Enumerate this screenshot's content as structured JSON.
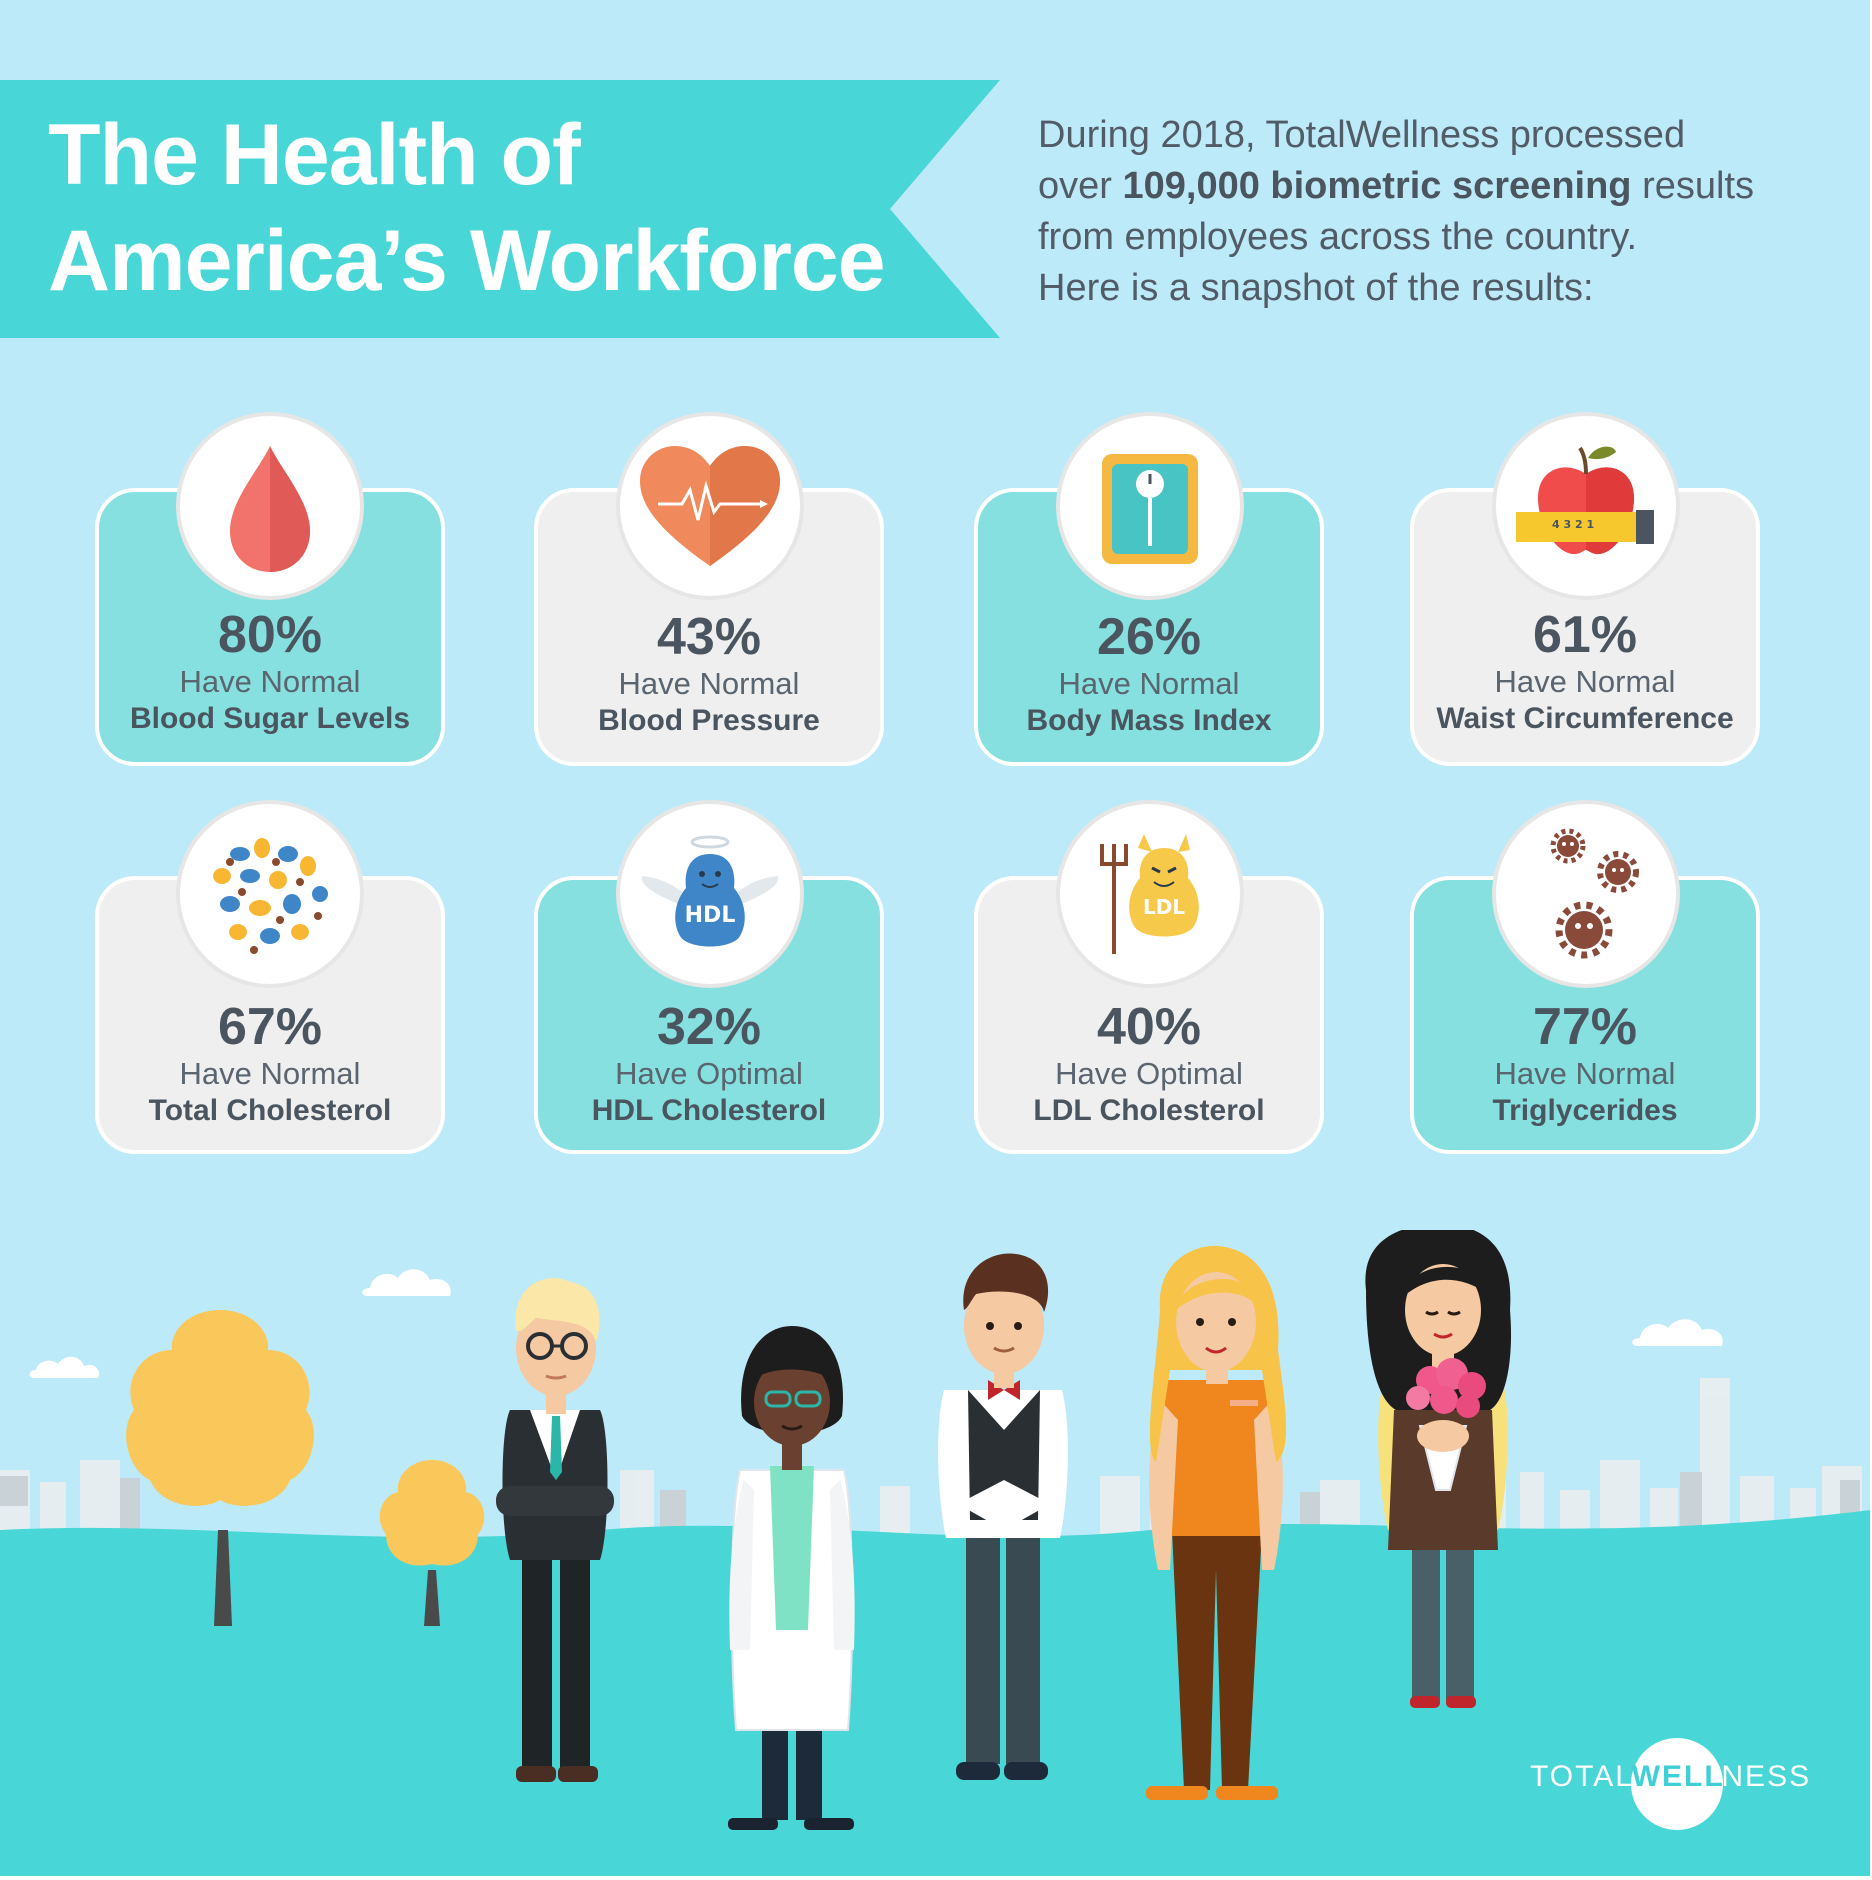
{
  "header": {
    "title_line1": "The Health of",
    "title_line2": "America’s Workforce"
  },
  "intro": {
    "line1": "During 2018, TotalWellness processed",
    "line2_pre": "over ",
    "line2_bold": "109,000 biometric screening",
    "line2_post": " results",
    "line3": "from employees across the country.",
    "line4": "Here is a snapshot of the results:"
  },
  "cards": [
    {
      "percent": "80%",
      "qualifier": "Have Normal",
      "metric": "Blood Sugar Levels",
      "icon": "blood-drop-icon"
    },
    {
      "percent": "43%",
      "qualifier": "Have Normal",
      "metric": "Blood Pressure",
      "icon": "heart-pulse-icon"
    },
    {
      "percent": "26%",
      "qualifier": "Have Normal",
      "metric": "Body Mass Index",
      "icon": "scale-icon"
    },
    {
      "percent": "61%",
      "qualifier": "Have Normal",
      "metric": "Waist Circumference",
      "icon": "apple-tape-icon"
    },
    {
      "percent": "67%",
      "qualifier": "Have Normal",
      "metric": "Total Cholesterol",
      "icon": "cholesterol-particles-icon"
    },
    {
      "percent": "32%",
      "qualifier": "Have Optimal",
      "metric": "HDL Cholesterol",
      "icon": "hdl-angel-icon"
    },
    {
      "percent": "40%",
      "qualifier": "Have Optimal",
      "metric": "LDL Cholesterol",
      "icon": "ldl-devil-icon"
    },
    {
      "percent": "77%",
      "qualifier": "Have Normal",
      "metric": "Triglycerides",
      "icon": "triglyceride-germs-icon"
    }
  ],
  "icon_labels": {
    "hdl": "HDL",
    "ldl": "LDL",
    "tape": "4 3 2 1"
  },
  "logo": {
    "part1": "TOTAL",
    "part2": "WELL",
    "part3": "NESS"
  },
  "colors": {
    "sky": "#bdeaf8",
    "teal": "#49d6d6",
    "card_teal": "#85e0df",
    "card_grey": "#efefef",
    "text": "#4a5560"
  }
}
